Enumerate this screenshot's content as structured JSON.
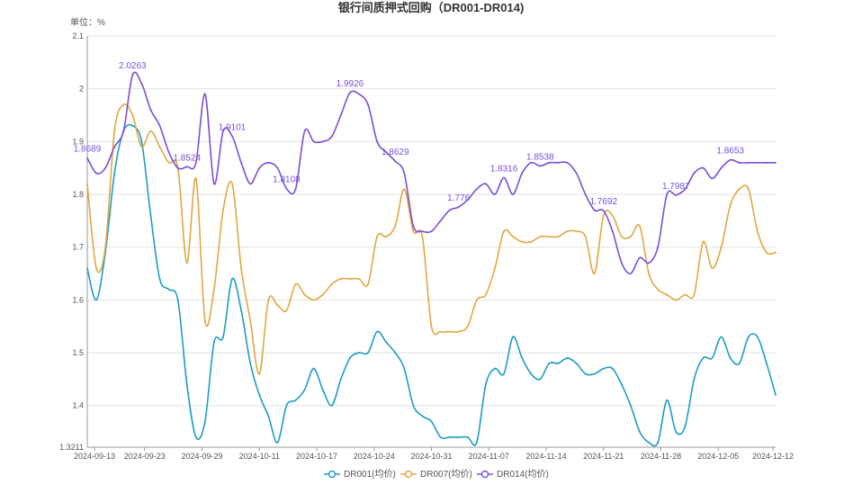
{
  "chart_data": {
    "type": "line",
    "title": "银行间质押式回购（DR001-DR014)",
    "unit_label": "单位：%",
    "xlabel": "",
    "ylabel": "",
    "x_ticks": [
      "2024-09-13",
      "2024-09-23",
      "2024-09-29",
      "2024-10-11",
      "2024-10-17",
      "2024-10-24",
      "2024-10-31",
      "2024-11-07",
      "2024-11-14",
      "2024-11-21",
      "2024-11-28",
      "2024-12-05",
      "2024-12-12"
    ],
    "y_ticks": [
      1.3211,
      1.4,
      1.5,
      1.6,
      1.7,
      1.8,
      1.9,
      2,
      2.1
    ],
    "ylim": [
      1.3211,
      2.1
    ],
    "grid": true,
    "legend_position": "bottom",
    "series": [
      {
        "name": "DR001(均价)",
        "color": "#1f9cc4",
        "values": [
          1.66,
          1.6,
          1.69,
          1.84,
          1.92,
          1.93,
          1.9,
          1.76,
          1.64,
          1.62,
          1.6,
          1.44,
          1.34,
          1.37,
          1.52,
          1.53,
          1.64,
          1.58,
          1.48,
          1.42,
          1.38,
          1.33,
          1.4,
          1.41,
          1.43,
          1.47,
          1.43,
          1.4,
          1.45,
          1.49,
          1.5,
          1.5,
          1.54,
          1.52,
          1.5,
          1.47,
          1.4,
          1.38,
          1.37,
          1.34,
          1.34,
          1.34,
          1.34,
          1.33,
          1.44,
          1.47,
          1.46,
          1.53,
          1.49,
          1.46,
          1.45,
          1.48,
          1.48,
          1.49,
          1.48,
          1.46,
          1.46,
          1.47,
          1.47,
          1.44,
          1.4,
          1.35,
          1.33,
          1.33,
          1.41,
          1.35,
          1.36,
          1.45,
          1.49,
          1.49,
          1.53,
          1.49,
          1.48,
          1.53,
          1.53,
          1.48,
          1.42
        ]
      },
      {
        "name": "DR007(均价)",
        "color": "#e0a840",
        "values": [
          1.82,
          1.66,
          1.7,
          1.92,
          1.97,
          1.95,
          1.89,
          1.92,
          1.89,
          1.86,
          1.85,
          1.67,
          1.83,
          1.56,
          1.62,
          1.77,
          1.82,
          1.66,
          1.56,
          1.46,
          1.6,
          1.59,
          1.58,
          1.63,
          1.61,
          1.6,
          1.61,
          1.63,
          1.64,
          1.64,
          1.64,
          1.63,
          1.72,
          1.72,
          1.74,
          1.81,
          1.73,
          1.72,
          1.55,
          1.54,
          1.54,
          1.54,
          1.55,
          1.6,
          1.61,
          1.66,
          1.73,
          1.72,
          1.71,
          1.71,
          1.72,
          1.72,
          1.72,
          1.73,
          1.73,
          1.72,
          1.65,
          1.76,
          1.76,
          1.72,
          1.72,
          1.74,
          1.65,
          1.62,
          1.61,
          1.6,
          1.61,
          1.61,
          1.71,
          1.66,
          1.7,
          1.78,
          1.81,
          1.81,
          1.73,
          1.69,
          1.69
        ]
      },
      {
        "name": "DR014(均价)",
        "color": "#7b4fd8",
        "values": [
          1.8689,
          1.84,
          1.85,
          1.89,
          1.92,
          2.0263,
          2.01,
          1.96,
          1.93,
          1.88,
          1.85,
          1.8524,
          1.86,
          1.99,
          1.82,
          1.92,
          1.9101,
          1.86,
          1.82,
          1.85,
          1.86,
          1.85,
          1.8108,
          1.81,
          1.92,
          1.9,
          1.9,
          1.91,
          1.95,
          1.9926,
          1.99,
          1.97,
          1.9,
          1.88,
          1.8629,
          1.84,
          1.74,
          1.73,
          1.73,
          1.75,
          1.77,
          1.776,
          1.79,
          1.81,
          1.82,
          1.8,
          1.8316,
          1.8,
          1.84,
          1.86,
          1.8538,
          1.86,
          1.86,
          1.86,
          1.84,
          1.8,
          1.77,
          1.7692,
          1.73,
          1.67,
          1.65,
          1.68,
          1.67,
          1.7,
          1.8,
          1.7987,
          1.81,
          1.84,
          1.85,
          1.83,
          1.85,
          1.8653,
          1.86,
          1.86,
          1.86,
          1.86,
          1.86
        ]
      }
    ],
    "annotations": [
      {
        "series": 2,
        "index": 0,
        "label": "1.8689"
      },
      {
        "series": 2,
        "index": 5,
        "label": "2.0263"
      },
      {
        "series": 2,
        "index": 11,
        "label": "1.8524"
      },
      {
        "series": 2,
        "index": 16,
        "label": "1.9101"
      },
      {
        "series": 2,
        "index": 22,
        "label": "1.8108"
      },
      {
        "series": 2,
        "index": 29,
        "label": "1.9926"
      },
      {
        "series": 2,
        "index": 34,
        "label": "1.8629"
      },
      {
        "series": 2,
        "index": 41,
        "label": "1.776"
      },
      {
        "series": 2,
        "index": 46,
        "label": "1.8316"
      },
      {
        "series": 2,
        "index": 50,
        "label": "1.8538"
      },
      {
        "series": 2,
        "index": 57,
        "label": "1.7692"
      },
      {
        "series": 2,
        "index": 65,
        "label": "1.7987"
      },
      {
        "series": 2,
        "index": 71,
        "label": "1.8653"
      }
    ]
  }
}
